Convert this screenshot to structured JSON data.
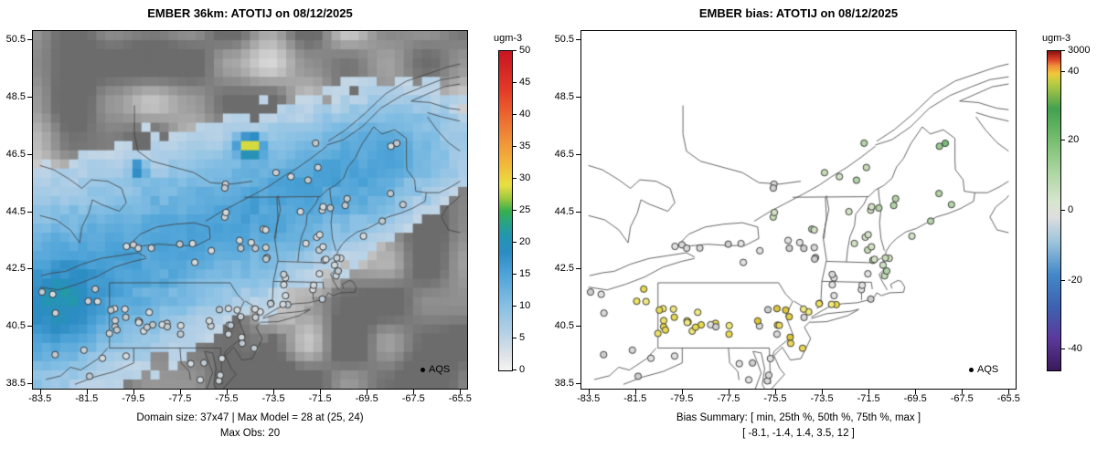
{
  "panels": {
    "left": {
      "title": "EMBER 36km: ATOTIJ on 08/12/2025",
      "captions": [
        "Domain size: 37x47 | Max Model = 28 at (25, 24)",
        "Max Obs: 20"
      ],
      "legend": "AQS",
      "colorbar_title": "ugm-3",
      "colorbar_ticks": [
        "50",
        "45",
        "40",
        "35",
        "30",
        "25",
        "20",
        "15",
        "10",
        "5",
        "0"
      ]
    },
    "right": {
      "title": "EMBER bias: ATOTIJ on 08/12/2025",
      "captions": [
        "Bias Summary: [ min, 25th %, 50th %, 75th %, max ]",
        "[ -8.1,  -1.4,  1.4,  3.5,  12 ]"
      ],
      "legend": "AQS",
      "colorbar_title": "ugm-3",
      "colorbar_ticks": [
        "3000",
        "40",
        "20",
        "0",
        "-20",
        "-40"
      ]
    }
  },
  "axes": {
    "x_ticks": [
      "-83.5",
      "-81.5",
      "-79.5",
      "-77.5",
      "-75.5",
      "-73.5",
      "-71.5",
      "-69.5",
      "-67.5",
      "-65.5"
    ],
    "y_ticks": [
      "50.5",
      "48.5",
      "46.5",
      "44.5",
      "42.5",
      "40.5",
      "38.5"
    ]
  },
  "chart_data": [
    {
      "type": "map",
      "panel": "left",
      "title": "EMBER 36km: ATOTIJ on 08/12/2025",
      "model": "EMBER 36km",
      "variable": "ATOTIJ",
      "date": "08/12/2025",
      "units": "ugm-3",
      "colorbar": {
        "min": 0,
        "max": 50,
        "ticks": [
          0,
          5,
          10,
          15,
          20,
          25,
          30,
          35,
          40,
          45,
          50
        ]
      },
      "x_ticks": [
        -83.5,
        -81.5,
        -79.5,
        -77.5,
        -75.5,
        -73.5,
        -71.5,
        -69.5,
        -67.5,
        -65.5
      ],
      "y_ticks": [
        38.5,
        40.5,
        42.5,
        44.5,
        46.5,
        48.5,
        50.5
      ],
      "domain_size": "37x47",
      "max_model": 28,
      "max_model_location": "(25, 24)",
      "max_obs": 20,
      "obs_network": "AQS"
    },
    {
      "type": "map",
      "panel": "right",
      "title": "EMBER bias: ATOTIJ on 08/12/2025",
      "variable": "ATOTIJ",
      "date": "08/12/2025",
      "units": "ugm-3",
      "colorbar": {
        "tick_labels": [
          3000,
          40,
          20,
          0,
          -20,
          -40
        ]
      },
      "x_ticks": [
        -83.5,
        -81.5,
        -79.5,
        -77.5,
        -75.5,
        -73.5,
        -71.5,
        -69.5,
        -67.5,
        -65.5
      ],
      "y_ticks": [
        38.5,
        40.5,
        42.5,
        44.5,
        46.5,
        48.5,
        50.5
      ],
      "bias_summary_labels": [
        "min",
        "25th %",
        "50th %",
        "75th %",
        "max"
      ],
      "bias_summary_values": [
        -8.1,
        -1.4,
        1.4,
        3.5,
        12
      ],
      "obs_network": "AQS"
    }
  ]
}
